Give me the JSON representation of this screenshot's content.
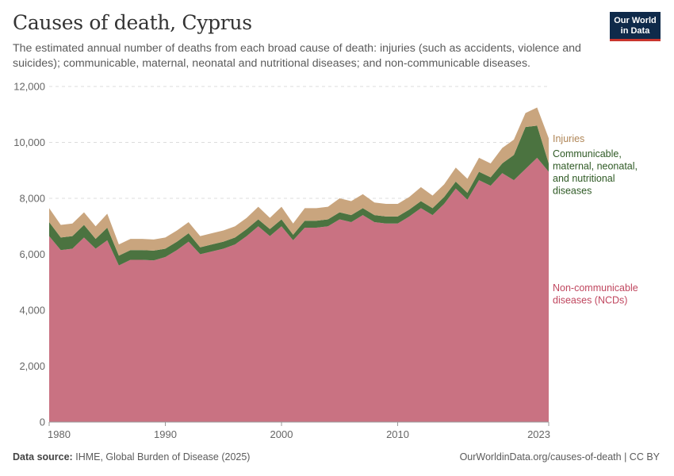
{
  "header": {
    "title": "Causes of death, Cyprus",
    "subtitle": "The estimated annual number of deaths from each broad cause of death: injuries (such as accidents, violence and suicides); communicable, maternal, neonatal and nutritional diseases; and non-communicable diseases.",
    "logo_line1": "Our World",
    "logo_line2": "in Data"
  },
  "footer": {
    "source_label": "Data source:",
    "source_text": "IHME, Global Burden of Disease (2025)",
    "url_text": "OurWorldinData.org/causes-of-death | CC BY"
  },
  "colors": {
    "ncd": "#c97282",
    "communicable": "#4b7340",
    "injuries": "#c9a57e",
    "ncd_label": "#c0475f",
    "communicable_label": "#2f5a25",
    "injuries_label": "#b08657"
  },
  "chart_data": {
    "type": "area",
    "stacked": true,
    "title": "Causes of death, Cyprus",
    "ylim": [
      0,
      12000
    ],
    "xlim": [
      1980,
      2023
    ],
    "y_ticks": [
      "0",
      "2,000",
      "4,000",
      "6,000",
      "8,000",
      "10,000",
      "12,000"
    ],
    "y_tick_values": [
      0,
      2000,
      4000,
      6000,
      8000,
      10000,
      12000
    ],
    "x_ticks": [
      "1980",
      "1990",
      "2000",
      "2010",
      "2023"
    ],
    "x_tick_values": [
      1980,
      1990,
      2000,
      2010,
      2023
    ],
    "grid": true,
    "x": [
      1980,
      1981,
      1982,
      1983,
      1984,
      1985,
      1986,
      1987,
      1988,
      1989,
      1990,
      1991,
      1992,
      1993,
      1994,
      1995,
      1996,
      1997,
      1998,
      1999,
      2000,
      2001,
      2002,
      2003,
      2004,
      2005,
      2006,
      2007,
      2008,
      2009,
      2010,
      2011,
      2012,
      2013,
      2014,
      2015,
      2016,
      2017,
      2018,
      2019,
      2020,
      2021,
      2022,
      2023
    ],
    "series": [
      {
        "name": "Non-communicable diseases (NCDs)",
        "label_lines": [
          "Non-communicable",
          "diseases (NCDs)"
        ],
        "color_key": "ncd",
        "values": [
          6650,
          6150,
          6200,
          6600,
          6200,
          6500,
          5600,
          5800,
          5800,
          5780,
          5900,
          6150,
          6450,
          6000,
          6100,
          6200,
          6350,
          6650,
          7000,
          6650,
          7000,
          6500,
          6950,
          6950,
          7000,
          7250,
          7150,
          7400,
          7150,
          7100,
          7100,
          7350,
          7650,
          7400,
          7800,
          8350,
          7950,
          8650,
          8450,
          8900,
          8650,
          9050,
          9450,
          8950
        ]
      },
      {
        "name": "Communicable, maternal, neonatal, and nutritional diseases",
        "label_lines": [
          "Communicable,",
          "maternal, neonatal,",
          "and nutritional",
          "diseases"
        ],
        "color_key": "communicable",
        "values": [
          500,
          450,
          450,
          450,
          350,
          450,
          350,
          350,
          350,
          350,
          300,
          300,
          300,
          250,
          250,
          250,
          250,
          250,
          250,
          250,
          250,
          200,
          250,
          250,
          250,
          250,
          250,
          250,
          250,
          250,
          250,
          250,
          250,
          250,
          250,
          250,
          250,
          300,
          300,
          350,
          900,
          1500,
          1150,
          300
        ]
      },
      {
        "name": "Injuries",
        "label_lines": [
          "Injuries"
        ],
        "color_key": "injuries",
        "values": [
          500,
          450,
          450,
          450,
          450,
          500,
          400,
          400,
          400,
          400,
          400,
          400,
          400,
          400,
          400,
          400,
          400,
          400,
          450,
          400,
          450,
          400,
          450,
          450,
          450,
          500,
          500,
          500,
          450,
          450,
          450,
          450,
          500,
          450,
          450,
          500,
          500,
          500,
          500,
          550,
          550,
          500,
          650,
          900
        ]
      }
    ]
  }
}
